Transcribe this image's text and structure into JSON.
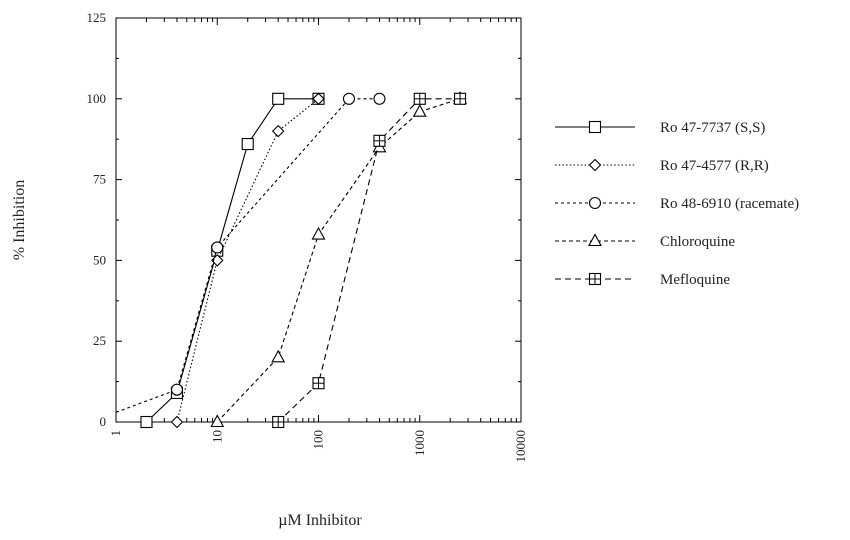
{
  "chart_data": {
    "type": "line",
    "title": "",
    "xlabel": "µM Inhibitor",
    "ylabel": "% Inhibition",
    "x_scale": "log",
    "xlim": [
      1,
      10000
    ],
    "ylim": [
      0,
      125
    ],
    "x_ticks": [
      1,
      10,
      100,
      1000,
      10000
    ],
    "x_tick_labels": [
      "1",
      "10",
      "100",
      "1000",
      "10000"
    ],
    "y_ticks": [
      0,
      25,
      50,
      75,
      100,
      125
    ],
    "y_tick_labels": [
      "0",
      "25",
      "50",
      "75",
      "100",
      "125"
    ],
    "grid": false,
    "legend_position": "right",
    "series": [
      {
        "name": "Ro 47-7737 (S,S)",
        "marker": "square",
        "line_style": "solid",
        "color": "#000000",
        "x": [
          2,
          4,
          10,
          20,
          40,
          100
        ],
        "y": [
          0,
          9,
          53,
          86,
          100,
          100
        ]
      },
      {
        "name": "Ro 47-4577 (R,R)",
        "marker": "diamond",
        "line_style": "dotted",
        "color": "#000000",
        "x": [
          4,
          10,
          40,
          100
        ],
        "y": [
          0,
          50,
          90,
          100
        ]
      },
      {
        "name": "Ro 48-6910 (racemate)",
        "marker": "circle",
        "line_style": "short-dash",
        "color": "#000000",
        "x": [
          1,
          4,
          10,
          200,
          400
        ],
        "y": [
          3,
          10,
          54,
          100,
          100
        ]
      },
      {
        "name": "Chloroquine",
        "marker": "triangle",
        "line_style": "dashed",
        "color": "#000000",
        "x": [
          10,
          40,
          100,
          400,
          1000,
          2500
        ],
        "y": [
          0,
          20,
          58,
          85,
          96,
          100
        ]
      },
      {
        "name": "Mefloquine",
        "marker": "square-plus",
        "line_style": "long-dash",
        "color": "#000000",
        "x": [
          40,
          100,
          400,
          1000,
          2500
        ],
        "y": [
          0,
          12,
          87,
          100,
          100
        ]
      }
    ]
  }
}
